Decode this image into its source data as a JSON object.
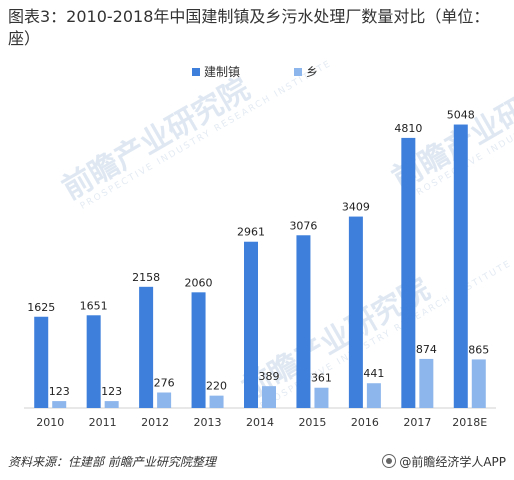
{
  "title": "图表3：2010-2018年中国建制镇及乡污水处理厂数量对比（单位：座）",
  "footer": {
    "source": "资料来源：住建部 前瞻产业研究院整理",
    "brand": "@前瞻经济学人APP"
  },
  "watermark": {
    "text": "前瞻产业研究院",
    "sub": "PROSPECTIVE INDUSTRY RESEARCH INSTITUTE"
  },
  "colors": {
    "town": "#3d7fdb",
    "township": "#8db6ec"
  },
  "chart_data": {
    "type": "bar",
    "categories": [
      "2010",
      "2011",
      "2012",
      "2013",
      "2014",
      "2015",
      "2016",
      "2017",
      "2018E"
    ],
    "series": [
      {
        "name": "建制镇",
        "values": [
          1625,
          1651,
          2158,
          2060,
          2961,
          3076,
          3409,
          4810,
          5048
        ]
      },
      {
        "name": "乡",
        "values": [
          123,
          123,
          276,
          220,
          389,
          361,
          441,
          874,
          865
        ]
      }
    ],
    "ylim": [
      0,
      5200
    ],
    "legend": "top-center",
    "grid": false,
    "data_labels": true
  }
}
